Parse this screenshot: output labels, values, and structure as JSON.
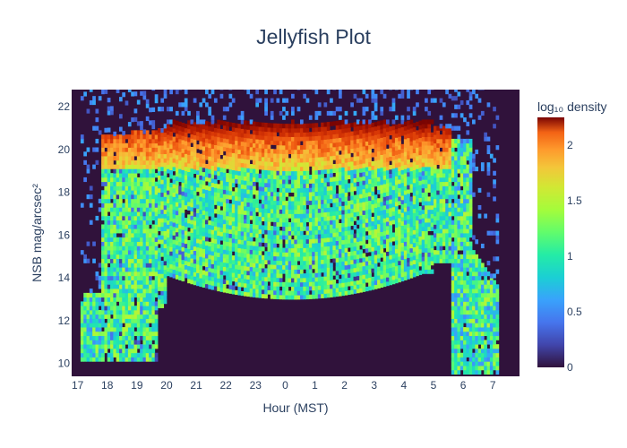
{
  "chart_data": {
    "type": "heatmap",
    "title": "Jellyfish Plot",
    "xlabel": "Hour (MST)",
    "ylabel": "NSB mag/arcsec²",
    "x_tick_labels": [
      "17",
      "18",
      "19",
      "20",
      "21",
      "22",
      "23",
      "0",
      "1",
      "2",
      "3",
      "4",
      "5",
      "6",
      "7"
    ],
    "x_range": [
      16.8,
      31.9
    ],
    "y_ticks": [
      10,
      12,
      14,
      16,
      18,
      20,
      22
    ],
    "y_range": [
      9.4,
      22.8
    ],
    "colorbar": {
      "title": "log₁₀ density",
      "ticks": [
        0,
        0.5,
        1,
        1.5,
        2
      ],
      "tick_labels": [
        "0",
        "0.5",
        "1",
        "1.5",
        "2"
      ],
      "range": [
        0,
        2.25
      ],
      "colorscale": "turbo"
    },
    "plot_background_color": "#30123b",
    "bin_width_hours": 0.1,
    "bin_height_mag": 0.2,
    "envelope": {
      "description_points": [
        {
          "hour": 17.4,
          "min_mag": 10.1,
          "max_mag": 13.1
        },
        {
          "hour": 17.8,
          "min_mag": 10.1,
          "max_mag": 20.6
        },
        {
          "hour": 19.7,
          "min_mag": 12.6,
          "max_mag": 20.8
        },
        {
          "hour": 20.0,
          "min_mag": 14.1,
          "max_mag": 21.0
        },
        {
          "hour": 24.0,
          "min_mag": 13.0,
          "max_mag": 21.2
        },
        {
          "hour": 28.0,
          "min_mag": 14.0,
          "max_mag": 21.2
        },
        {
          "hour": 29.0,
          "min_mag": 14.7,
          "max_mag": 21.1
        },
        {
          "hour": 29.6,
          "min_mag": 9.5,
          "max_mag": 20.3
        },
        {
          "hour": 31.2,
          "min_mag": 9.5,
          "max_mag": 13.3
        }
      ],
      "peak_band_mag": [
        20.4,
        21.2
      ],
      "peak_density": 2.2
    }
  }
}
